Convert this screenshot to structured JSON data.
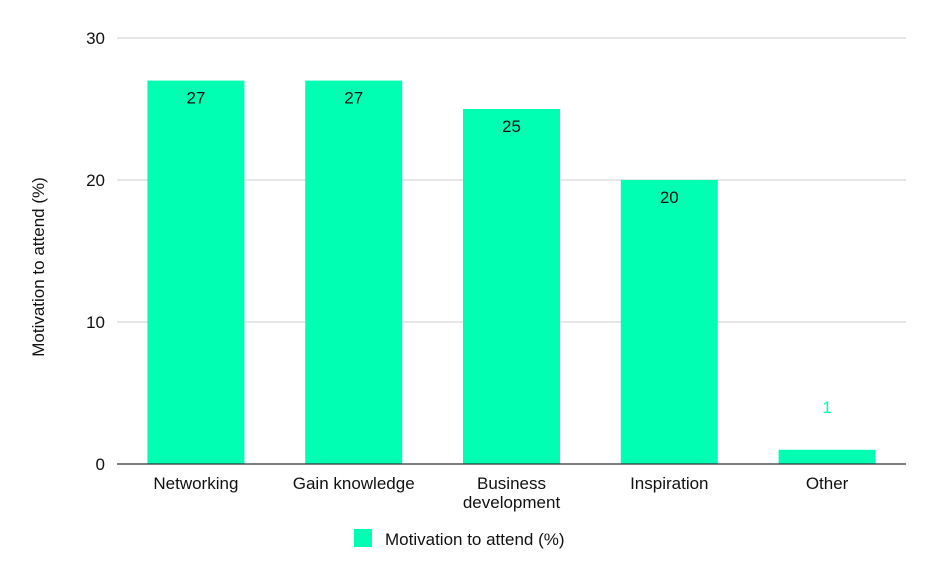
{
  "chart_data": {
    "type": "bar",
    "title": "",
    "xlabel": "",
    "ylabel": "Motivation to attend (%)",
    "categories": [
      [
        "Networking"
      ],
      [
        "Gain knowledge"
      ],
      [
        "Business",
        "development"
      ],
      [
        "Inspiration"
      ],
      [
        "Other"
      ]
    ],
    "series": [
      {
        "name": "Motivation to attend (%)",
        "values": [
          27,
          27,
          25,
          20,
          1
        ],
        "color": "#00FFB2"
      }
    ],
    "ylim": [
      0,
      30
    ],
    "yticks": [
      0,
      10,
      20,
      30
    ],
    "grid": true,
    "legend": "bottom",
    "data_label_inside_color": "#111111",
    "data_label_outside_color": "#00FFB2"
  }
}
